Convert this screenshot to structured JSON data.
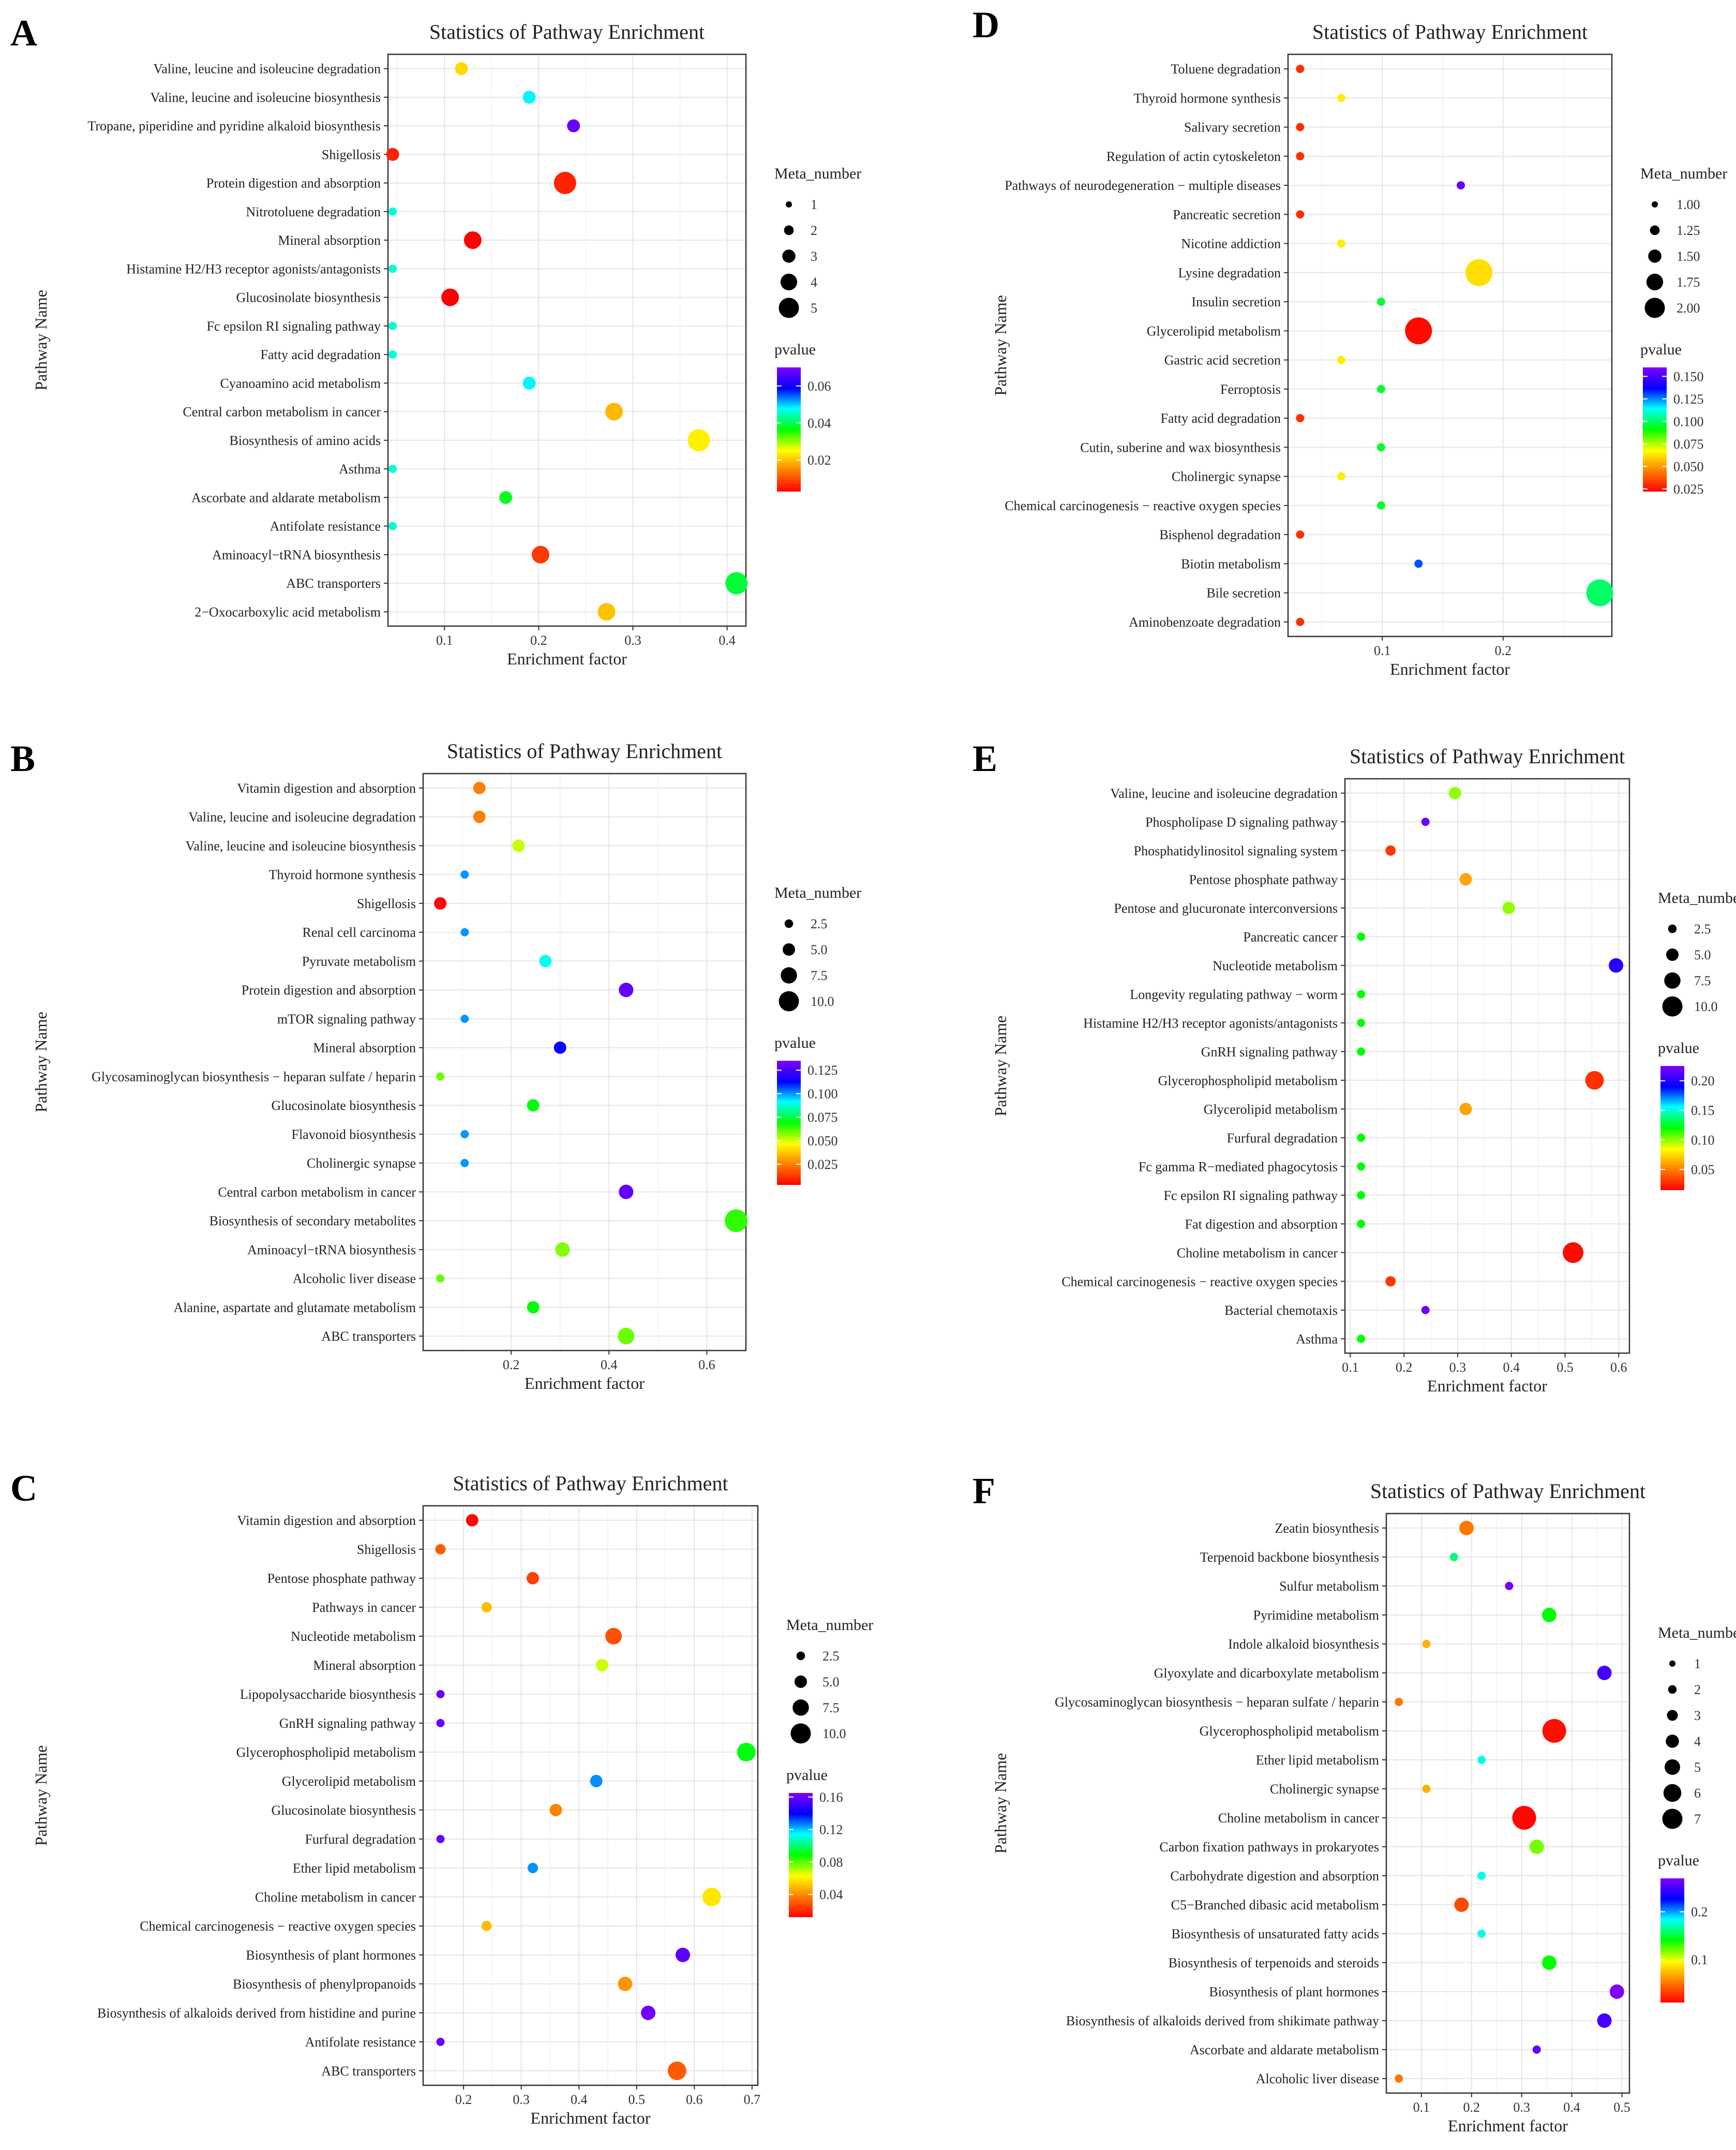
{
  "chart_data": [
    {
      "panel": "A",
      "type": "scatter",
      "title": "Statistics of Pathway Enrichment",
      "xlabel": "Enrichment factor",
      "ylabel": "Pathway Name",
      "xlim": [
        0.04,
        0.42
      ],
      "xticks": [
        0.1,
        0.2,
        0.3,
        0.4
      ],
      "xtick_labels": [
        "0.1",
        "0.2",
        "0.3",
        "0.4"
      ],
      "size_title": "Meta_number",
      "size_values": [
        1,
        2,
        3,
        4,
        5
      ],
      "size_labels": [
        "1",
        "2",
        "3",
        "4",
        "5"
      ],
      "size_range": [
        1,
        5
      ],
      "color_title": "pvalue",
      "color_range": [
        0.003,
        0.07
      ],
      "color_ticks": [
        0.02,
        0.04,
        0.06
      ],
      "color_tick_labels": [
        "0.02",
        "0.04",
        "0.06"
      ],
      "categories": [
        "Valine, leucine and isoleucine degradation",
        "Valine, leucine and isoleucine biosynthesis",
        "Tropane, piperidine and pyridine alkaloid biosynthesis",
        "Shigellosis",
        "Protein digestion and absorption",
        "Nitrotoluene degradation",
        "Mineral absorption",
        "Histamine H2/H3 receptor agonists/antagonists",
        "Glucosinolate biosynthesis",
        "Fc epsilon RI signaling pathway",
        "Fatty acid degradation",
        "Cyanoamino acid metabolism",
        "Central carbon metabolism in cancer",
        "Biosynthesis of amino acids",
        "Asthma",
        "Ascorbate and aldarate metabolism",
        "Antifolate resistance",
        "Aminoacyl−tRNA biosynthesis",
        "ABC transporters",
        "2−Oxocarboxylic acid metabolism"
      ],
      "x": [
        0.118,
        0.19,
        0.237,
        0.045,
        0.228,
        0.045,
        0.13,
        0.045,
        0.106,
        0.045,
        0.045,
        0.19,
        0.28,
        0.37,
        0.045,
        0.165,
        0.045,
        0.202,
        0.41,
        0.272
      ],
      "size": [
        2,
        2,
        2,
        2,
        4,
        1,
        3,
        1,
        3,
        1,
        1,
        2,
        3,
        4,
        1,
        2,
        1,
        3,
        4,
        3
      ],
      "pvalue": [
        0.022,
        0.048,
        0.068,
        0.006,
        0.006,
        0.046,
        0.003,
        0.046,
        0.003,
        0.046,
        0.046,
        0.048,
        0.019,
        0.024,
        0.046,
        0.038,
        0.046,
        0.008,
        0.039,
        0.02
      ]
    },
    {
      "panel": "B",
      "type": "scatter",
      "title": "Statistics of Pathway Enrichment",
      "xlabel": "Enrichment factor",
      "ylabel": "Pathway Name",
      "xlim": [
        0.02,
        0.68
      ],
      "xticks": [
        0.2,
        0.4,
        0.6
      ],
      "xtick_labels": [
        "0.2",
        "0.4",
        "0.6"
      ],
      "size_title": "Meta_number",
      "size_values": [
        2.5,
        5,
        7.5,
        10
      ],
      "size_labels": [
        "2.5",
        "5.0",
        "7.5",
        "10.0"
      ],
      "size_range": [
        1,
        10
      ],
      "color_title": "pvalue",
      "color_range": [
        0.003,
        0.135
      ],
      "color_ticks": [
        0.025,
        0.05,
        0.075,
        0.1,
        0.125
      ],
      "color_tick_labels": [
        "0.025",
        "0.050",
        "0.075",
        "0.100",
        "0.125"
      ],
      "categories": [
        "Vitamin digestion and absorption",
        "Valine, leucine and isoleucine degradation",
        "Valine, leucine and isoleucine biosynthesis",
        "Thyroid hormone synthesis",
        "Shigellosis",
        "Renal cell carcinoma",
        "Pyruvate metabolism",
        "Protein digestion and absorption",
        "mTOR signaling pathway",
        "Mineral absorption",
        "Glycosaminoglycan biosynthesis − heparan sulfate / heparin",
        "Glucosinolate biosynthesis",
        "Flavonoid biosynthesis",
        "Cholinergic synapse",
        "Central carbon metabolism in cancer",
        "Biosynthesis of secondary metabolites",
        "Aminoacyl−tRNA biosynthesis",
        "Alcoholic liver disease",
        "Alanine, aspartate and glutamate metabolism",
        "ABC transporters"
      ],
      "x": [
        0.135,
        0.135,
        0.215,
        0.105,
        0.055,
        0.105,
        0.27,
        0.435,
        0.105,
        0.3,
        0.055,
        0.245,
        0.105,
        0.105,
        0.435,
        0.66,
        0.305,
        0.055,
        0.245,
        0.435
      ],
      "size": [
        3,
        3,
        3,
        1,
        3,
        1,
        3,
        4,
        1,
        3,
        1,
        3,
        1,
        1,
        4,
        8,
        4,
        1,
        3,
        5
      ],
      "pvalue": [
        0.025,
        0.025,
        0.052,
        0.1,
        0.004,
        0.1,
        0.09,
        0.13,
        0.1,
        0.115,
        0.06,
        0.07,
        0.1,
        0.1,
        0.13,
        0.065,
        0.058,
        0.06,
        0.07,
        0.06
      ]
    },
    {
      "panel": "C",
      "type": "scatter",
      "title": "Statistics of Pathway Enrichment",
      "xlabel": "Enrichment factor",
      "ylabel": "Pathway Name",
      "xlim": [
        0.13,
        0.71
      ],
      "xticks": [
        0.2,
        0.3,
        0.4,
        0.5,
        0.6,
        0.7
      ],
      "xtick_labels": [
        "0.2",
        "0.3",
        "0.4",
        "0.5",
        "0.6",
        "0.7"
      ],
      "size_title": "Meta_number",
      "size_values": [
        2.5,
        5,
        7.5,
        10
      ],
      "size_labels": [
        "2.5",
        "5.0",
        "7.5",
        "10.0"
      ],
      "size_range": [
        1,
        10
      ],
      "color_title": "pvalue",
      "color_range": [
        0.012,
        0.165
      ],
      "color_ticks": [
        0.04,
        0.08,
        0.12,
        0.16
      ],
      "color_tick_labels": [
        "0.04",
        "0.08",
        "0.12",
        "0.16"
      ],
      "categories": [
        "Vitamin digestion and absorption",
        "Shigellosis",
        "Pentose phosphate pathway",
        "Pathways in cancer",
        "Nucleotide metabolism",
        "Mineral absorption",
        "Lipopolysaccharide biosynthesis",
        "GnRH signaling pathway",
        "Glycerophospholipid metabolism",
        "Glycerolipid metabolism",
        "Glucosinolate biosynthesis",
        "Furfural degradation",
        "Ether lipid metabolism",
        "Choline metabolism in cancer",
        "Chemical carcinogenesis − reactive oxygen species",
        "Biosynthesis of plant hormones",
        "Biosynthesis of phenylpropanoids",
        "Biosynthesis of alkaloids derived from histidine and purine",
        "Antifolate resistance",
        "ABC transporters"
      ],
      "x": [
        0.215,
        0.16,
        0.32,
        0.24,
        0.46,
        0.44,
        0.16,
        0.16,
        0.69,
        0.43,
        0.36,
        0.16,
        0.32,
        0.63,
        0.24,
        0.58,
        0.48,
        0.52,
        0.16,
        0.57
      ],
      "size": [
        3,
        2,
        3,
        2,
        5,
        3,
        1,
        1,
        6,
        3,
        3,
        1,
        2,
        6,
        2,
        4,
        4,
        4,
        1,
        6
      ],
      "pvalue": [
        0.014,
        0.03,
        0.025,
        0.05,
        0.028,
        0.068,
        0.16,
        0.16,
        0.09,
        0.125,
        0.038,
        0.16,
        0.125,
        0.058,
        0.05,
        0.158,
        0.042,
        0.162,
        0.16,
        0.03
      ]
    },
    {
      "panel": "D",
      "type": "scatter",
      "title": "Statistics of Pathway Enrichment",
      "xlabel": "Enrichment factor",
      "ylabel": "Pathway Name",
      "xlim": [
        0.022,
        0.29
      ],
      "xticks": [
        0.1,
        0.2
      ],
      "xtick_labels": [
        "0.1",
        "0.2"
      ],
      "size_title": "Meta_number",
      "size_values": [
        1,
        1.25,
        1.5,
        1.75,
        2
      ],
      "size_labels": [
        "1.00",
        "1.25",
        "1.50",
        "1.75",
        "2.00"
      ],
      "size_range": [
        1,
        2
      ],
      "color_title": "pvalue",
      "color_range": [
        0.022,
        0.16
      ],
      "color_ticks": [
        0.025,
        0.05,
        0.075,
        0.1,
        0.125,
        0.15
      ],
      "color_tick_labels": [
        "0.025",
        "0.050",
        "0.075",
        "0.100",
        "0.125",
        "0.150"
      ],
      "categories": [
        "Toluene degradation",
        "Thyroid hormone synthesis",
        "Salivary secretion",
        "Regulation of actin cytoskeleton",
        "Pathways of neurodegeneration − multiple diseases",
        "Pancreatic secretion",
        "Nicotine addiction",
        "Lysine degradation",
        "Insulin secretion",
        "Glycerolipid metabolism",
        "Gastric acid secretion",
        "Ferroptosis",
        "Fatty acid degradation",
        "Cutin, suberine and wax biosynthesis",
        "Cholinergic synapse",
        "Chemical carcinogenesis − reactive oxygen species",
        "Bisphenol degradation",
        "Biotin metabolism",
        "Bile secretion",
        "Aminobenzoate degradation"
      ],
      "x": [
        0.032,
        0.066,
        0.032,
        0.032,
        0.165,
        0.032,
        0.066,
        0.18,
        0.099,
        0.13,
        0.066,
        0.099,
        0.032,
        0.099,
        0.066,
        0.099,
        0.032,
        0.13,
        0.28,
        0.032
      ],
      "size": [
        1,
        1,
        1,
        1,
        1,
        1,
        1,
        2,
        1,
        2,
        1,
        1,
        1,
        1,
        1,
        1,
        1,
        1,
        2,
        1
      ],
      "pvalue": [
        0.03,
        0.065,
        0.03,
        0.03,
        0.155,
        0.03,
        0.065,
        0.062,
        0.095,
        0.024,
        0.065,
        0.095,
        0.03,
        0.095,
        0.065,
        0.095,
        0.03,
        0.13,
        0.1,
        0.03
      ]
    },
    {
      "panel": "E",
      "type": "scatter",
      "title": "Statistics of Pathway Enrichment",
      "xlabel": "Enrichment factor",
      "ylabel": "Pathway Name",
      "xlim": [
        0.09,
        0.62
      ],
      "xticks": [
        0.1,
        0.2,
        0.3,
        0.4,
        0.5,
        0.6
      ],
      "xtick_labels": [
        "0.1",
        "0.2",
        "0.3",
        "0.4",
        "0.5",
        "0.6"
      ],
      "size_title": "Meta_number",
      "size_values": [
        2.5,
        5,
        7.5,
        10
      ],
      "size_labels": [
        "2.5",
        "5.0",
        "7.5",
        "10.0"
      ],
      "size_range": [
        1,
        10
      ],
      "color_title": "pvalue",
      "color_range": [
        0.015,
        0.225
      ],
      "color_ticks": [
        0.05,
        0.1,
        0.15,
        0.2
      ],
      "color_tick_labels": [
        "0.05",
        "0.10",
        "0.15",
        "0.20"
      ],
      "categories": [
        "Valine, leucine and isoleucine degradation",
        "Phospholipase D signaling pathway",
        "Phosphatidylinositol signaling system",
        "Pentose phosphate pathway",
        "Pentose and glucuronate interconversions",
        "Pancreatic cancer",
        "Nucleotide metabolism",
        "Longevity regulating pathway − worm",
        "Histamine H2/H3 receptor agonists/antagonists",
        "GnRH signaling pathway",
        "Glycerophospholipid metabolism",
        "Glycerolipid metabolism",
        "Furfural degradation",
        "Fc gamma R−mediated phagocytosis",
        "Fc epsilon RI signaling pathway",
        "Fat digestion and absorption",
        "Choline metabolism in cancer",
        "Chemical carcinogenesis − reactive oxygen species",
        "Bacterial chemotaxis",
        "Asthma"
      ],
      "x": [
        0.295,
        0.24,
        0.175,
        0.315,
        0.395,
        0.12,
        0.595,
        0.12,
        0.12,
        0.12,
        0.555,
        0.315,
        0.12,
        0.12,
        0.12,
        0.12,
        0.515,
        0.175,
        0.24,
        0.12
      ],
      "size": [
        3,
        1,
        2,
        3,
        3,
        1,
        4,
        1,
        1,
        1,
        6,
        3,
        1,
        1,
        1,
        1,
        7,
        2,
        1,
        1
      ],
      "pvalue": [
        0.1,
        0.22,
        0.03,
        0.06,
        0.1,
        0.12,
        0.2,
        0.12,
        0.12,
        0.12,
        0.028,
        0.06,
        0.12,
        0.12,
        0.12,
        0.12,
        0.018,
        0.03,
        0.22,
        0.12
      ]
    },
    {
      "panel": "F",
      "type": "scatter",
      "title": "Statistics of Pathway Enrichment",
      "xlabel": "Enrichment factor",
      "ylabel": "Pathway Name",
      "xlim": [
        0.03,
        0.515
      ],
      "xticks": [
        0.1,
        0.2,
        0.3,
        0.4,
        0.5
      ],
      "xtick_labels": [
        "0.1",
        "0.2",
        "0.3",
        "0.4",
        "0.5"
      ],
      "size_title": "Meta_number",
      "size_values": [
        1,
        2,
        3,
        4,
        5,
        6,
        7
      ],
      "size_labels": [
        "1",
        "2",
        "3",
        "4",
        "5",
        "6",
        "7"
      ],
      "size_range": [
        1,
        7
      ],
      "color_title": "pvalue",
      "color_range": [
        0.01,
        0.27
      ],
      "color_ticks": [
        0.1,
        0.2
      ],
      "color_tick_labels": [
        "0.1",
        "0.2"
      ],
      "categories": [
        "Zeatin biosynthesis",
        "Terpenoid backbone biosynthesis",
        "Sulfur metabolism",
        "Pyrimidine metabolism",
        "Indole alkaloid biosynthesis",
        "Glyoxylate and dicarboxylate metabolism",
        "Glycosaminoglycan biosynthesis − heparan sulfate / heparin",
        "Glycerophospholipid metabolism",
        "Ether lipid metabolism",
        "Cholinergic synapse",
        "Choline metabolism in cancer",
        "Carbon fixation pathways in prokaryotes",
        "Carbohydrate digestion and absorption",
        "C5−Branched dibasic acid metabolism",
        "Biosynthesis of unsaturated fatty acids",
        "Biosynthesis of terpenoids and steroids",
        "Biosynthesis of plant hormones",
        "Biosynthesis of alkaloids derived from shikimate pathway",
        "Ascorbate and aldarate metabolism",
        "Alcoholic liver disease"
      ],
      "x": [
        0.19,
        0.165,
        0.275,
        0.355,
        0.11,
        0.465,
        0.055,
        0.365,
        0.22,
        0.11,
        0.305,
        0.33,
        0.22,
        0.18,
        0.22,
        0.355,
        0.49,
        0.465,
        0.33,
        0.055
      ],
      "size": [
        3,
        1,
        1,
        3,
        1,
        3,
        1,
        6,
        1,
        1,
        6,
        3,
        1,
        3,
        1,
        3,
        3,
        3,
        1,
        1
      ],
      "pvalue": [
        0.05,
        0.16,
        0.265,
        0.14,
        0.07,
        0.25,
        0.05,
        0.015,
        0.18,
        0.07,
        0.012,
        0.12,
        0.18,
        0.035,
        0.18,
        0.14,
        0.27,
        0.25,
        0.26,
        0.05
      ]
    }
  ]
}
